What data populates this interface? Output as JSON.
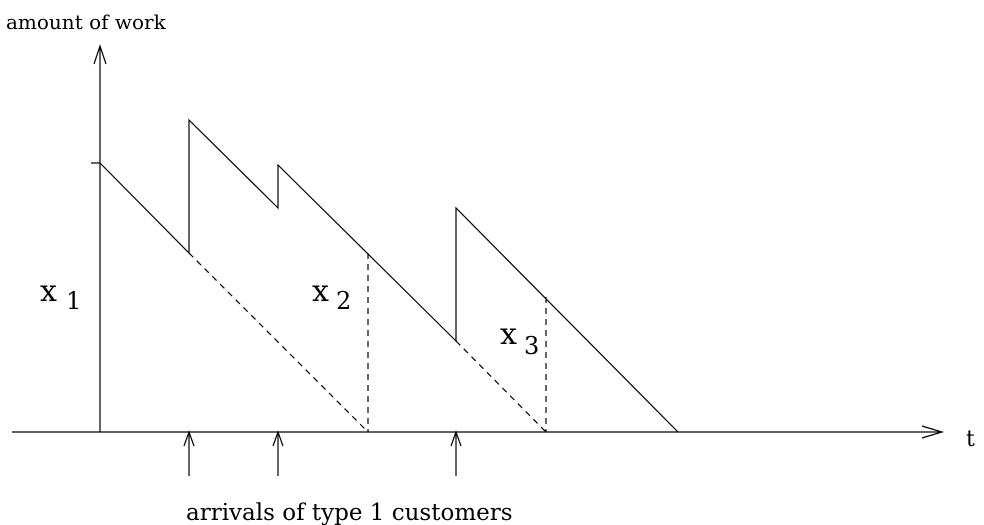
{
  "labels": {
    "y_axis": "amount of work",
    "x_axis": "t",
    "x1_main": "x",
    "x1_sub": "1",
    "x2_main": "x",
    "x2_sub": "2",
    "x3_main": "x",
    "x3_sub": "3",
    "arrivals": "arrivals of type 1 customers"
  }
}
